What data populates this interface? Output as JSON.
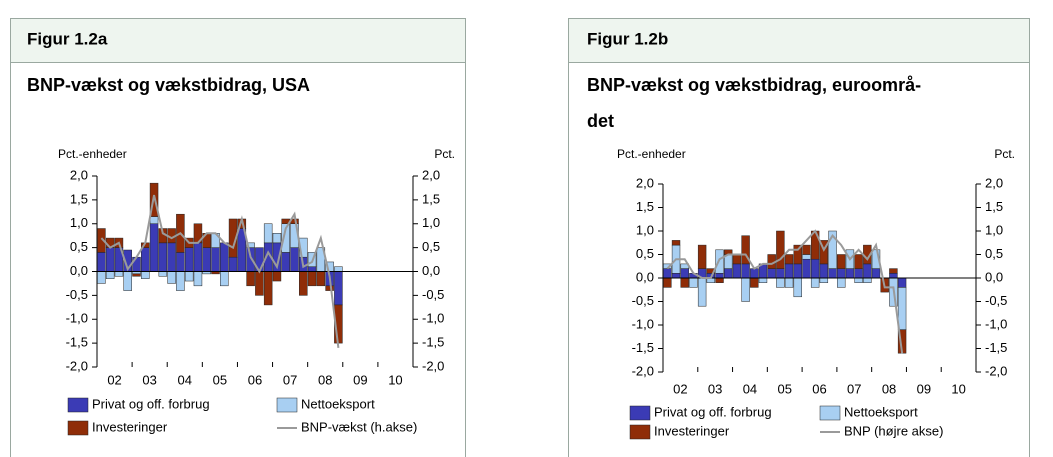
{
  "chart_data": [
    {
      "type": "stacked-bar-line",
      "header": "Figur 1.2a",
      "title": [
        "BNP-vækst og vækstbidrag, USA"
      ],
      "y_label": "Pct.-enheder",
      "y2_label": "Pct.",
      "x_labels": [
        "02",
        "03",
        "04",
        "05",
        "06",
        "07",
        "08",
        "09",
        "10"
      ],
      "categories": [
        null,
        null,
        null,
        null,
        null,
        null,
        null,
        null,
        null,
        null,
        null,
        null,
        null,
        null,
        null,
        null,
        null,
        null,
        null,
        null,
        null,
        null,
        null,
        null,
        null,
        null,
        null,
        null
      ],
      "series": [
        {
          "name": "Privat og off. forbrug",
          "color": "#3b3bb5",
          "kind": "bar",
          "values": [
            0.4,
            0.5,
            0.5,
            0.45,
            0.3,
            0.5,
            1.0,
            0.6,
            0.6,
            0.4,
            0.5,
            0.6,
            0.5,
            0.5,
            0.6,
            0.3,
            0.9,
            0.5,
            0.5,
            0.6,
            0.6,
            0.4,
            0.5,
            0.3,
            0.1,
            0.0,
            -0.3,
            -0.7
          ]
        },
        {
          "name": "Nettoeksport",
          "color": "#a8cff2",
          "kind": "bar",
          "values": [
            -0.25,
            -0.15,
            -0.1,
            -0.4,
            -0.05,
            -0.15,
            0.15,
            -0.1,
            -0.25,
            -0.4,
            -0.2,
            -0.3,
            -0.05,
            0.3,
            -0.3,
            0.0,
            0.0,
            0.1,
            0.0,
            0.4,
            0.2,
            0.6,
            0.5,
            0.4,
            0.3,
            0.5,
            0.2,
            0.1
          ]
        },
        {
          "name": "Investeringer",
          "color": "#8f2d08",
          "kind": "bar",
          "values": [
            0.5,
            0.2,
            0.2,
            0.0,
            -0.05,
            0.1,
            0.7,
            0.3,
            0.3,
            0.8,
            0.2,
            0.4,
            0.3,
            -0.05,
            0.0,
            0.8,
            0.2,
            -0.3,
            -0.5,
            -0.7,
            -0.2,
            0.1,
            0.1,
            -0.5,
            -0.3,
            -0.3,
            -0.1,
            -0.8
          ]
        },
        {
          "name": "BNP-vækst (h.akse)",
          "color": "#9a9a9a",
          "kind": "line",
          "axis": "y2",
          "values": [
            0.7,
            0.5,
            0.6,
            0.05,
            0.3,
            0.6,
            1.6,
            0.8,
            0.7,
            0.8,
            0.6,
            0.6,
            0.8,
            0.8,
            0.6,
            0.5,
            1.1,
            0.3,
            0.0,
            0.4,
            0.1,
            0.9,
            1.2,
            0.1,
            0.2,
            0.7,
            -0.1,
            -1.6
          ]
        }
      ],
      "ylim": [
        -2,
        2
      ],
      "yticks": [
        {
          "value": -2,
          "label": "-2,0"
        },
        {
          "value": -1.5,
          "label": "-1,5"
        },
        {
          "value": -1,
          "label": "-1,0"
        },
        {
          "value": -0.5,
          "label": "-0,5"
        },
        {
          "value": 0,
          "label": "0,0"
        },
        {
          "value": 0.5,
          "label": "0,5"
        },
        {
          "value": 1,
          "label": "1,0"
        },
        {
          "value": 1.5,
          "label": "1,5"
        },
        {
          "value": 2,
          "label": "2,0"
        }
      ],
      "y2lim": [
        -2,
        2
      ],
      "y2ticks": [
        {
          "value": -2,
          "label": "-2,0"
        },
        {
          "value": -1.5,
          "label": "-1,5"
        },
        {
          "value": -1,
          "label": "-1,0"
        },
        {
          "value": -0.5,
          "label": "-0,5"
        },
        {
          "value": 0,
          "label": "0,0"
        },
        {
          "value": 0.5,
          "label": "0,5"
        },
        {
          "value": 1,
          "label": "1,0"
        },
        {
          "value": 1.5,
          "label": "1,5"
        },
        {
          "value": 2,
          "label": "2,0"
        }
      ]
    },
    {
      "type": "stacked-bar-line",
      "header": "Figur 1.2b",
      "title": [
        "BNP-vækst og vækstbidrag, euroområ-",
        "det"
      ],
      "y_label": "Pct.-enheder",
      "y2_label": "Pct.",
      "x_labels": [
        "02",
        "03",
        "04",
        "05",
        "06",
        "07",
        "08",
        "09",
        "10"
      ],
      "categories": [
        null,
        null,
        null,
        null,
        null,
        null,
        null,
        null,
        null,
        null,
        null,
        null,
        null,
        null,
        null,
        null,
        null,
        null,
        null,
        null,
        null,
        null,
        null,
        null,
        null,
        null,
        null,
        null
      ],
      "series": [
        {
          "name": "Privat og off. forbrug",
          "color": "#3b3bb5",
          "kind": "bar",
          "values": [
            0.2,
            0.1,
            0.2,
            0.1,
            0.2,
            0.1,
            0.1,
            0.2,
            0.3,
            0.3,
            0.2,
            0.3,
            0.2,
            0.2,
            0.3,
            0.3,
            0.4,
            0.4,
            0.3,
            0.2,
            0.2,
            0.2,
            0.2,
            0.3,
            0.2,
            0.0,
            0.1,
            -0.2
          ]
        },
        {
          "name": "Nettoeksport",
          "color": "#a8cff2",
          "kind": "bar",
          "values": [
            0.1,
            0.6,
            0.1,
            -0.2,
            -0.6,
            -0.1,
            0.5,
            0.3,
            0.0,
            -0.5,
            0.0,
            -0.1,
            0.0,
            -0.2,
            -0.2,
            -0.4,
            0.1,
            -0.2,
            -0.1,
            0.8,
            -0.2,
            0.4,
            -0.1,
            -0.1,
            0.4,
            0.0,
            -0.6,
            -0.9
          ]
        },
        {
          "name": "Investeringer",
          "color": "#8f2d08",
          "kind": "bar",
          "values": [
            -0.2,
            0.1,
            -0.2,
            0.0,
            0.5,
            0.1,
            -0.1,
            0.1,
            0.2,
            0.6,
            -0.2,
            0.0,
            0.3,
            0.8,
            0.2,
            0.4,
            0.2,
            0.6,
            0.5,
            0.0,
            0.3,
            0.0,
            0.3,
            0.4,
            0.0,
            -0.3,
            0.1,
            -0.5
          ]
        },
        {
          "name": "BNP (højre akse)",
          "color": "#9a9a9a",
          "kind": "line",
          "axis": "y2",
          "values": [
            0.2,
            0.4,
            0.4,
            0.1,
            0.0,
            0.0,
            0.4,
            0.5,
            0.5,
            0.5,
            0.2,
            0.3,
            0.3,
            0.4,
            0.6,
            0.6,
            0.8,
            1.0,
            0.6,
            0.9,
            0.7,
            0.4,
            0.6,
            0.4,
            0.7,
            -0.2,
            -0.2,
            -1.6
          ]
        }
      ],
      "ylim": [
        -2,
        2
      ],
      "yticks": [
        {
          "value": -2,
          "label": "-2,0"
        },
        {
          "value": -1.5,
          "label": "-1,5"
        },
        {
          "value": -1,
          "label": "-1,0"
        },
        {
          "value": -0.5,
          "label": "-0,5"
        },
        {
          "value": 0,
          "label": "0,0"
        },
        {
          "value": 0.5,
          "label": "0,5"
        },
        {
          "value": 1,
          "label": "1,0"
        },
        {
          "value": 1.5,
          "label": "1,5"
        },
        {
          "value": 2,
          "label": "2,0"
        }
      ],
      "y2lim": [
        -2,
        2
      ],
      "y2ticks": [
        {
          "value": -2,
          "label": "-2,0"
        },
        {
          "value": -1.5,
          "label": "-1,5"
        },
        {
          "value": -1,
          "label": "-1,0"
        },
        {
          "value": -0.5,
          "label": "-0,5"
        },
        {
          "value": 0,
          "label": "0,0"
        },
        {
          "value": 0.5,
          "label": "0,5"
        },
        {
          "value": 1,
          "label": "1,0"
        },
        {
          "value": 1.5,
          "label": "1,5"
        },
        {
          "value": 2,
          "label": "2,0"
        }
      ]
    }
  ]
}
